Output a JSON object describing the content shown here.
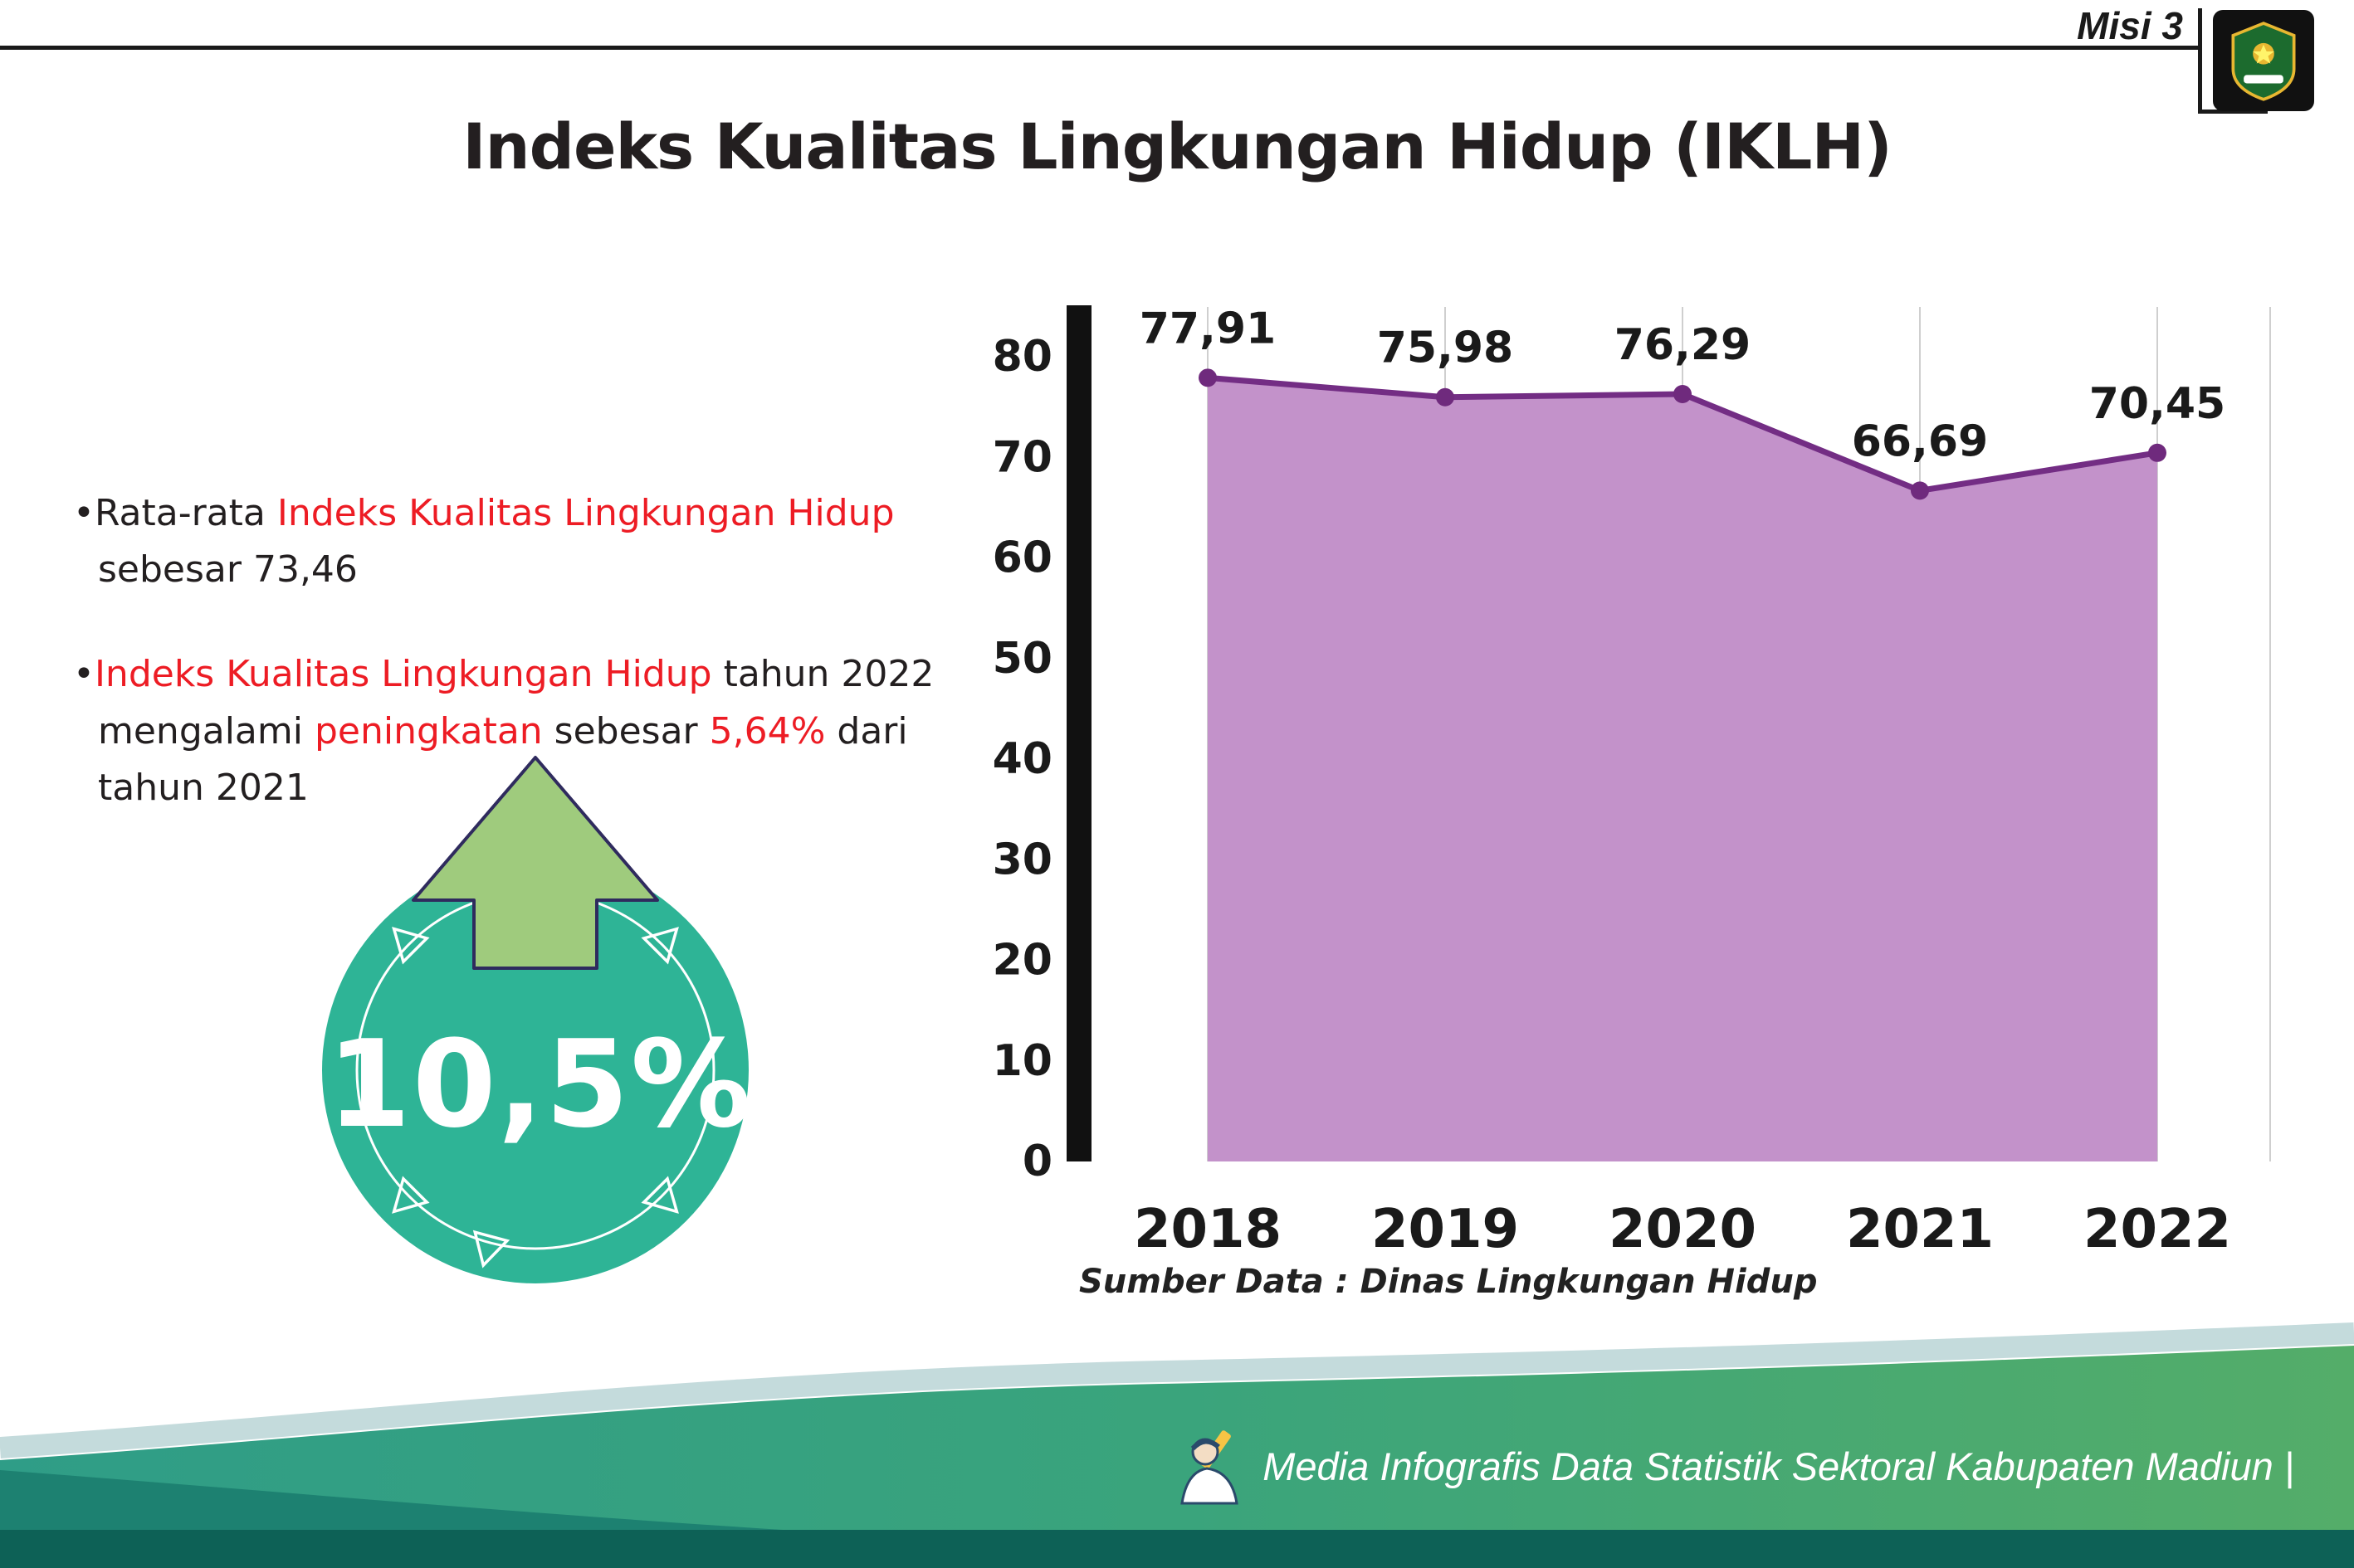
{
  "header": {
    "misi_label": "Misi 3",
    "title": "Indeks Kualitas Lingkungan Hidup (IKLH)"
  },
  "bullets": [
    {
      "segments": [
        {
          "text": "•Rata-rata ",
          "red": false
        },
        {
          "text": "Indeks Kualitas Lingkungan Hidup",
          "red": true
        },
        {
          "text": " sebesar 73,46",
          "red": false
        }
      ]
    },
    {
      "segments": [
        {
          "text": "•",
          "red": false
        },
        {
          "text": "Indeks Kualitas Lingkungan Hidup",
          "red": true
        },
        {
          "text": " tahun 2022 mengalami ",
          "red": false
        },
        {
          "text": "peningkatan",
          "red": true
        },
        {
          "text": " sebesar ",
          "red": false
        },
        {
          "text": "5,64%",
          "red": true
        },
        {
          "text": " dari tahun 2021",
          "red": false
        }
      ]
    }
  ],
  "badge": {
    "value": "10,5%"
  },
  "chart_data": {
    "type": "area",
    "title": "Indeks Kualitas Lingkungan Hidup (IKLH)",
    "categories": [
      "2018",
      "2019",
      "2020",
      "2021",
      "2022"
    ],
    "values": [
      77.91,
      75.98,
      76.29,
      66.69,
      70.45
    ],
    "value_labels": [
      "77,91",
      "75,98",
      "76,29",
      "66,69",
      "70,45"
    ],
    "xlabel": "",
    "ylabel": "",
    "ylim": [
      0,
      80
    ],
    "yticks": [
      0,
      10,
      20,
      30,
      40,
      50,
      60,
      70,
      80
    ],
    "grid": "vertical",
    "legend": "none",
    "area_color": "#c392ca",
    "line_color": "#732d84",
    "marker_color": "#6f2a7d",
    "source_note": "Sumber Data : Dinas Lingkungan Hidup"
  },
  "footer": {
    "text": "Media Infografis Data Statistik Sektoral Kabupaten Madiun |"
  },
  "icons": {
    "up_arrow": "block-arrow-up",
    "mascot": "writer-mascot",
    "logo": "kabupaten-madiun-crest"
  },
  "colors": {
    "highlight_red": "#ed1c24",
    "text_dark": "#231f20",
    "badge_teal": "#2eb496",
    "arrow_green": "#9fcb7d",
    "arrow_outline": "#2f2b5e",
    "footer_green_left": "#2f9d87",
    "footer_green_right": "#54ad69",
    "footer_dark_strip": "#0d6156"
  }
}
